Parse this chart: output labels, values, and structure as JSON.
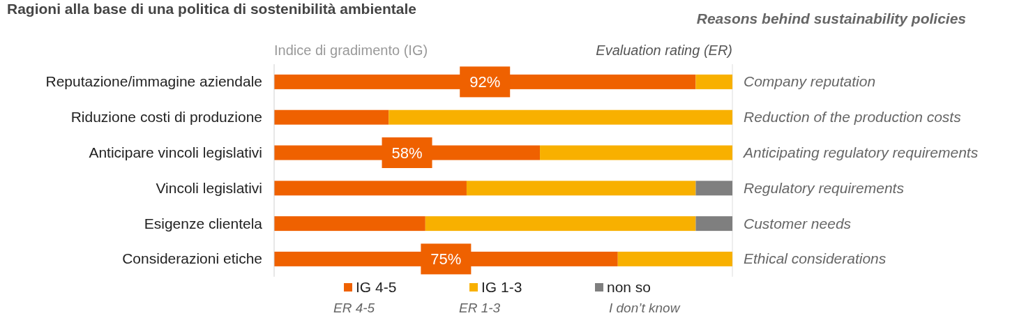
{
  "chart_data": {
    "type": "bar",
    "orientation": "horizontal",
    "stacked": true,
    "xlim": [
      0,
      100
    ],
    "tick_labels": "y",
    "title": "Ragioni alla base di una politica di sostenibilità ambientale",
    "subtitle": "Reasons behind sustainability policies",
    "categories": [
      "Reputazione/immagine aziendale",
      "Riduzione costi di produzione",
      "Anticipare vincoli legislativi",
      "Vincoli legislativi",
      "Esigenze clientela",
      "Considerazioni etiche"
    ],
    "series": [
      {
        "name": "IG 4-5\nER 4-5",
        "color": "#ef6100",
        "values": [
          92,
          25,
          58,
          42,
          33,
          75
        ],
        "value_labels": [
          "92%",
          null,
          "58%",
          null,
          null,
          "75%"
        ]
      },
      {
        "name": "IG 1-3\nER 1-3",
        "color": "#f8b000",
        "values": [
          8,
          75,
          42,
          50,
          59,
          25
        ]
      },
      {
        "name": "non so\nI don’t know",
        "color": "#7f7f7f",
        "values": [
          0,
          0,
          0,
          8,
          8,
          0
        ]
      }
    ],
    "annotations": [
      "Indice di gradimento (IG)",
      "Evaluation rating (ER)",
      "Company reputation",
      "Reduction of the production costs",
      "Anticipating regulatory requirements",
      "Regulatory requirements",
      "Customer needs",
      "Ethical considerations"
    ],
    "legend": "bottom"
  }
}
